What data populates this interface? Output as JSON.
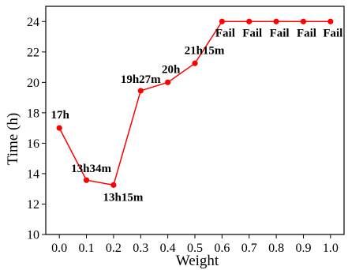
{
  "chart_data": {
    "type": "line",
    "title": "",
    "xlabel": "Weight",
    "ylabel": "Time (h)",
    "xlim": [
      -0.05,
      1.05
    ],
    "ylim": [
      10,
      25
    ],
    "x_ticks": [
      "0.0",
      "0.1",
      "0.2",
      "0.3",
      "0.4",
      "0.5",
      "0.6",
      "0.7",
      "0.8",
      "0.9",
      "1.0"
    ],
    "y_ticks": [
      "10",
      "12",
      "14",
      "16",
      "18",
      "20",
      "22",
      "24"
    ],
    "grid": false,
    "legend": "none",
    "series": [
      {
        "color": "#ff0000",
        "x": [
          0.0,
          0.1,
          0.2,
          0.3,
          0.4,
          0.5,
          0.6,
          0.7,
          0.8,
          0.9,
          1.0
        ],
        "y": [
          17.0,
          13.57,
          13.25,
          19.45,
          20.0,
          21.25,
          24.0,
          24.0,
          24.0,
          24.0,
          24.0
        ]
      }
    ],
    "annotations": [
      "17h",
      "13h34m",
      "13h15m",
      "19h27m",
      "20h",
      "21h15m",
      "Fail",
      "Fail",
      "Fail",
      "Fail",
      "Fail"
    ]
  }
}
